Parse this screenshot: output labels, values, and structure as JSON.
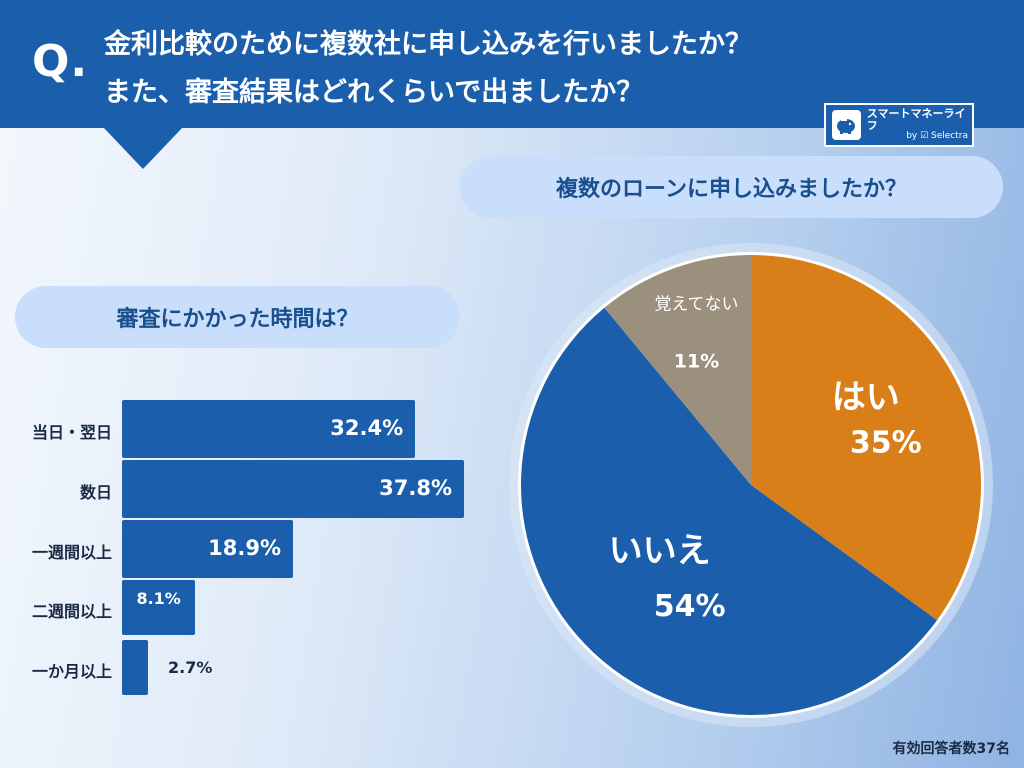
{
  "header": {
    "q_mark": "Q.",
    "question_line1": "金利比較のために複数社に申し込みを行いましたか？",
    "question_line2": "また、審査結果はどれくらいで出ましたか？"
  },
  "logo": {
    "main": "スマートマネーライフ",
    "sub": "by ☑ Selectra"
  },
  "colors": {
    "brand_blue": "#1b5fac",
    "orange": "#d97f1a",
    "gray_brown": "#9b8f7e",
    "pill_bg": "#c8defa"
  },
  "pie_section": {
    "title": "複数のローンに申し込みましたか？"
  },
  "bar_section": {
    "title": "審査にかかった時間は？"
  },
  "chart_data": [
    {
      "type": "pie",
      "title": "複数のローンに申し込みましたか？",
      "slices": [
        {
          "label": "はい",
          "value": 35,
          "display": "35%",
          "color": "#d97f1a"
        },
        {
          "label": "いいえ",
          "value": 54,
          "display": "54%",
          "color": "#1b5fac"
        },
        {
          "label": "覚えてない",
          "value": 11,
          "display": "11%",
          "color": "#9b8f7e"
        }
      ]
    },
    {
      "type": "bar",
      "orientation": "horizontal",
      "title": "審査にかかった時間は？",
      "categories": [
        "当日・翌日",
        "数日",
        "一週間以上",
        "二週間以上",
        "一か月以上"
      ],
      "values": [
        32.4,
        37.8,
        18.9,
        8.1,
        2.7
      ],
      "value_labels": [
        "32.4%",
        "37.8%",
        "18.9%",
        "8.1%",
        "2.7%"
      ],
      "xlim": [
        0,
        37.8
      ]
    }
  ],
  "footer": {
    "respondents": "有効回答者数37名"
  }
}
